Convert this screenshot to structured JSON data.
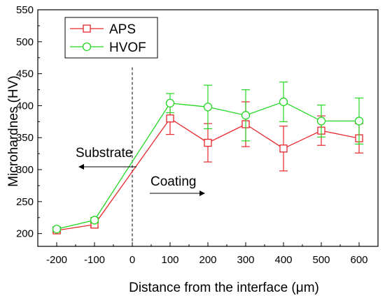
{
  "chart_data": {
    "type": "line",
    "xlabel": "Distance from the interface (μm)",
    "ylabel": "Microhardnes (HV)",
    "xlim": [
      -250,
      650
    ],
    "ylim": [
      180,
      550
    ],
    "x_ticks": [
      -200,
      -100,
      0,
      100,
      200,
      300,
      400,
      500,
      600
    ],
    "x_tick_labels": [
      "-200",
      "-100",
      "0",
      "100",
      "200",
      "300",
      "400",
      "500",
      "600"
    ],
    "y_ticks": [
      200,
      250,
      300,
      350,
      400,
      450,
      500,
      550
    ],
    "y_tick_labels": [
      "200",
      "250",
      "300",
      "350",
      "400",
      "450",
      "500",
      "550"
    ],
    "legend_position": "top-left",
    "series": [
      {
        "name": "APS",
        "color": "#e8262b",
        "marker": "square",
        "x": [
          -200,
          -100,
          100,
          200,
          300,
          400,
          500,
          600
        ],
        "y": [
          205,
          214,
          380,
          342,
          371,
          333,
          361,
          349
        ],
        "error": [
          3,
          4,
          25,
          30,
          35,
          35,
          23,
          23
        ]
      },
      {
        "name": "HVOF",
        "color": "#22d822",
        "marker": "circle",
        "x": [
          -200,
          -100,
          100,
          200,
          300,
          400,
          500,
          600
        ],
        "y": [
          207,
          221,
          404,
          398,
          385,
          406,
          376,
          376
        ],
        "error": [
          3,
          4,
          15,
          34,
          40,
          31,
          25,
          36
        ]
      }
    ],
    "interface_line_x": 0,
    "annotations": [
      {
        "text": "Substrate",
        "arrow": "left"
      },
      {
        "text": "Coating",
        "arrow": "right"
      }
    ]
  }
}
